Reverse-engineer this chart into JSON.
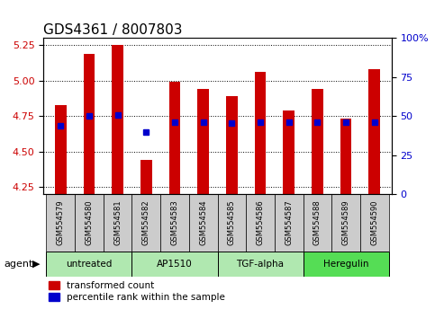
{
  "title": "GDS4361 / 8007803",
  "samples": [
    "GSM554579",
    "GSM554580",
    "GSM554581",
    "GSM554582",
    "GSM554583",
    "GSM554584",
    "GSM554585",
    "GSM554586",
    "GSM554587",
    "GSM554588",
    "GSM554589",
    "GSM554590"
  ],
  "red_values": [
    4.83,
    5.19,
    5.25,
    4.44,
    4.99,
    4.94,
    4.89,
    5.06,
    4.79,
    4.94,
    4.73,
    5.08
  ],
  "blue_values": [
    4.68,
    4.75,
    4.76,
    4.64,
    4.71,
    4.71,
    4.7,
    4.71,
    4.71,
    4.71,
    4.71,
    4.71
  ],
  "ylim_left": [
    4.2,
    5.3
  ],
  "yticks_left": [
    4.25,
    4.5,
    4.75,
    5.0,
    5.25
  ],
  "yticks_right": [
    0,
    25,
    50,
    75,
    100
  ],
  "ylabel_left_color": "#cc0000",
  "ylabel_right_color": "#0000cc",
  "grid_color": "#000000",
  "bar_color": "#cc0000",
  "blue_color": "#0000cc",
  "agent_groups": [
    {
      "label": "untreated",
      "start": 0,
      "end": 3,
      "color": "#b0e8b0"
    },
    {
      "label": "AP1510",
      "start": 3,
      "end": 6,
      "color": "#b0e8b0"
    },
    {
      "label": "TGF-alpha",
      "start": 6,
      "end": 9,
      "color": "#b0e8b0"
    },
    {
      "label": "Heregulin",
      "start": 9,
      "end": 12,
      "color": "#55dd55"
    }
  ],
  "legend_red_label": "transformed count",
  "legend_blue_label": "percentile rank within the sample",
  "bar_bottom": 4.2,
  "blue_marker_size": 4,
  "sample_bg_color": "#cccccc",
  "title_fontsize": 11,
  "tick_fontsize": 8,
  "bar_width": 0.4
}
